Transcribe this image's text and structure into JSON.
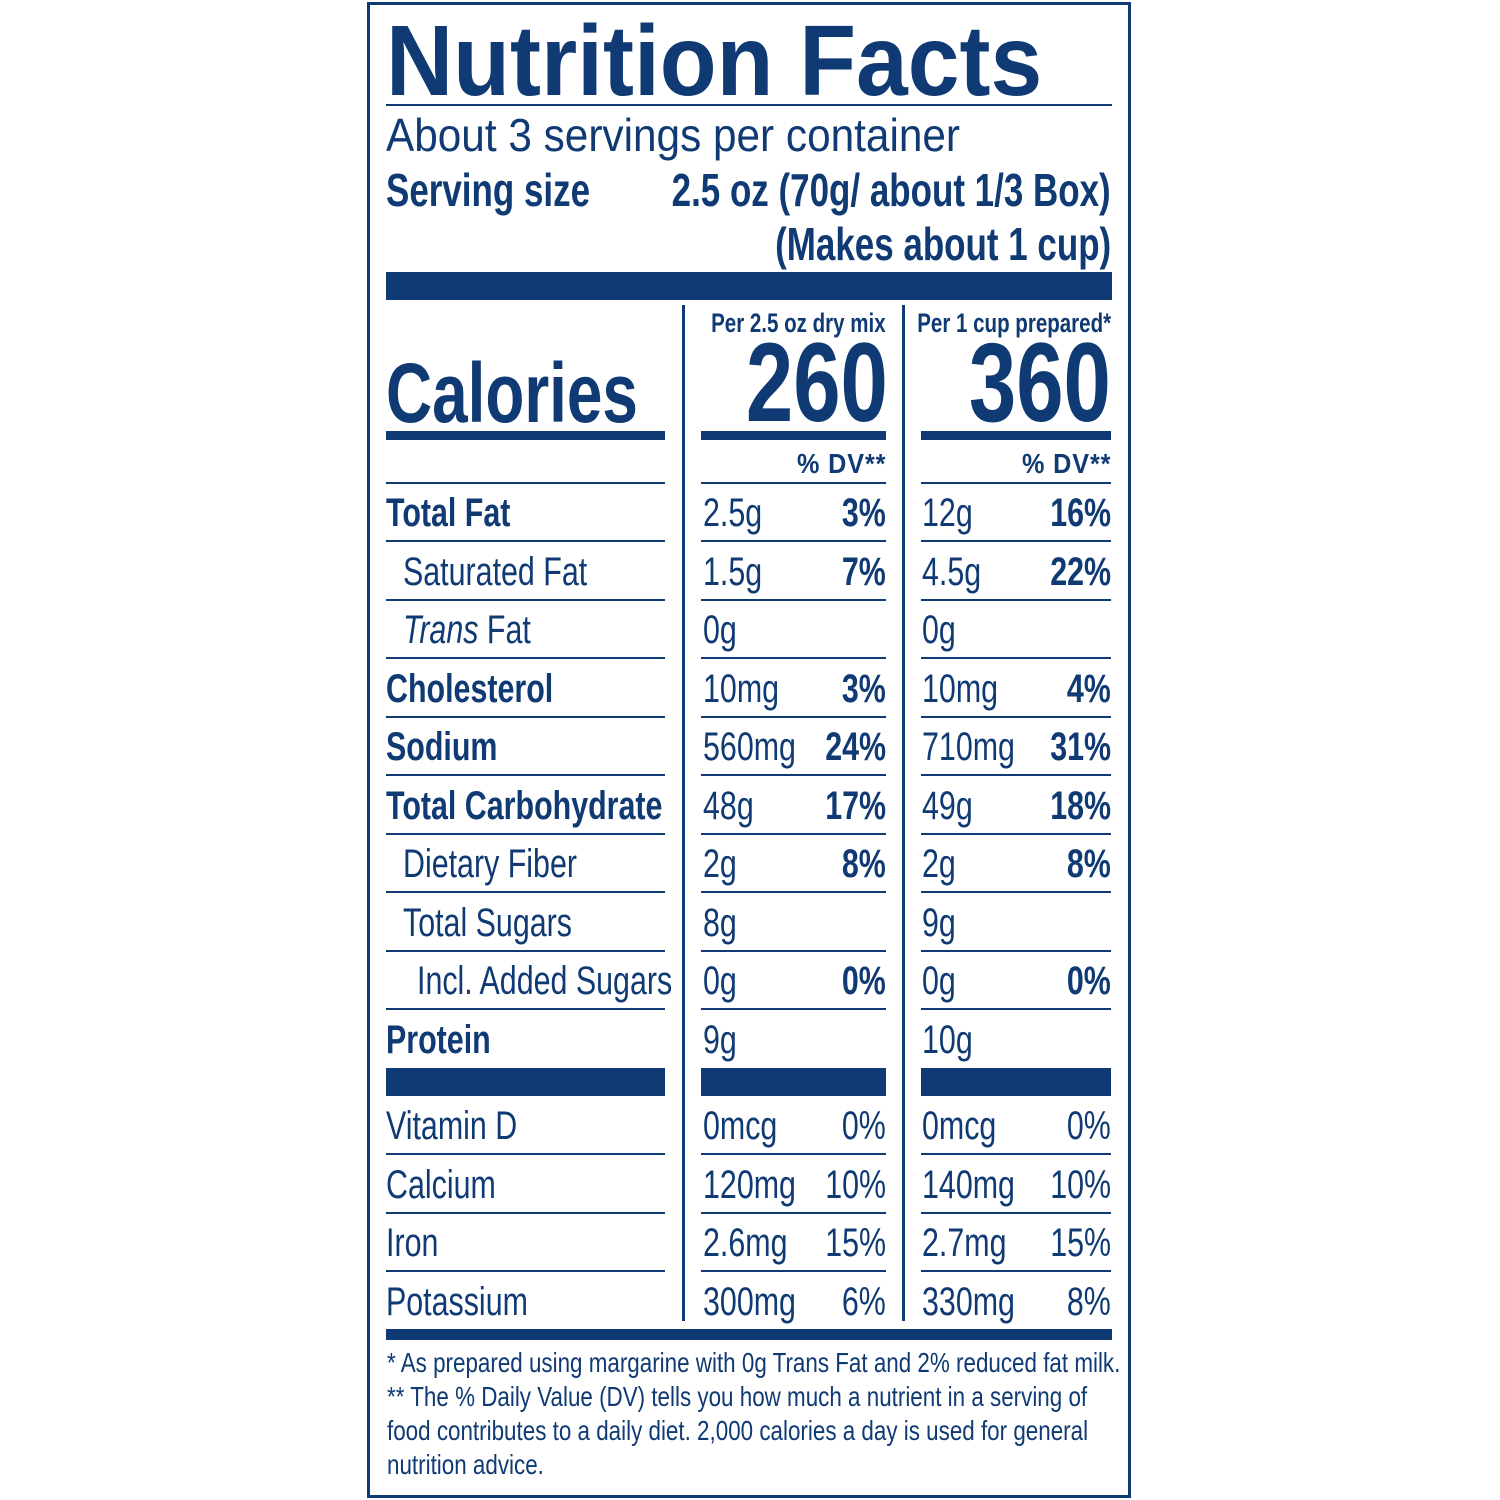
{
  "title": "Nutrition Facts",
  "servings_per_container": "About 3 servings per container",
  "serving_size_label": "Serving size",
  "serving_size_value": "2.5 oz (70g/ about 1/3 Box)",
  "serving_size_note": "(Makes about 1 cup)",
  "calories_label": "Calories",
  "columns": [
    {
      "header": "Per 2.5 oz dry mix",
      "calories": "260",
      "dv_header": "% DV**"
    },
    {
      "header": "Per 1 cup prepared*",
      "calories": "360",
      "dv_header": "% DV**"
    }
  ],
  "nutrients": [
    {
      "label": "Total Fat",
      "bold": true,
      "indent": 0,
      "dry": {
        "amount": "2.5g",
        "dv": "3%"
      },
      "prepared": {
        "amount": "12g",
        "dv": "16%"
      }
    },
    {
      "label": "Saturated Fat",
      "bold": false,
      "indent": 1,
      "dry": {
        "amount": "1.5g",
        "dv": "7%"
      },
      "prepared": {
        "amount": "4.5g",
        "dv": "22%"
      }
    },
    {
      "label_italic": "Trans",
      "label": " Fat",
      "bold": false,
      "indent": 1,
      "dry": {
        "amount": "0g",
        "dv": ""
      },
      "prepared": {
        "amount": "0g",
        "dv": ""
      }
    },
    {
      "label": "Cholesterol",
      "bold": true,
      "indent": 0,
      "dry": {
        "amount": "10mg",
        "dv": "3%"
      },
      "prepared": {
        "amount": "10mg",
        "dv": "4%"
      }
    },
    {
      "label": "Sodium",
      "bold": true,
      "indent": 0,
      "dry": {
        "amount": "560mg",
        "dv": "24%"
      },
      "prepared": {
        "amount": "710mg",
        "dv": "31%"
      }
    },
    {
      "label": "Total Carbohydrate",
      "bold": true,
      "indent": 0,
      "dry": {
        "amount": "48g",
        "dv": "17%"
      },
      "prepared": {
        "amount": "49g",
        "dv": "18%"
      }
    },
    {
      "label": "Dietary Fiber",
      "bold": false,
      "indent": 1,
      "dry": {
        "amount": "2g",
        "dv": "8%"
      },
      "prepared": {
        "amount": "2g",
        "dv": "8%"
      }
    },
    {
      "label": "Total Sugars",
      "bold": false,
      "indent": 1,
      "dry": {
        "amount": "8g",
        "dv": ""
      },
      "prepared": {
        "amount": "9g",
        "dv": ""
      }
    },
    {
      "label": "Incl. Added Sugars",
      "bold": false,
      "indent": 2,
      "dry": {
        "amount": "0g",
        "dv": "0%"
      },
      "prepared": {
        "amount": "0g",
        "dv": "0%"
      }
    },
    {
      "label": "Protein",
      "bold": true,
      "indent": 0,
      "dry": {
        "amount": "9g",
        "dv": ""
      },
      "prepared": {
        "amount": "10g",
        "dv": ""
      }
    }
  ],
  "vitamins": [
    {
      "label": "Vitamin D",
      "dry": {
        "amount": "0mcg",
        "dv": "0%"
      },
      "prepared": {
        "amount": "0mcg",
        "dv": "0%"
      }
    },
    {
      "label": "Calcium",
      "dry": {
        "amount": "120mg",
        "dv": "10%"
      },
      "prepared": {
        "amount": "140mg",
        "dv": "10%"
      }
    },
    {
      "label": "Iron",
      "dry": {
        "amount": "2.6mg",
        "dv": "15%"
      },
      "prepared": {
        "amount": "2.7mg",
        "dv": "15%"
      }
    },
    {
      "label": "Potassium",
      "dry": {
        "amount": "300mg",
        "dv": "6%"
      },
      "prepared": {
        "amount": "330mg",
        "dv": "8%"
      }
    }
  ],
  "footnotes": [
    "* As prepared using margarine with 0g Trans Fat and 2% reduced fat milk.",
    "** The % Daily Value (DV) tells you how much a nutrient in a serving of",
    "food contributes to a daily diet. 2,000 calories a day is used for general",
    "nutrition advice."
  ],
  "colors": {
    "ink": "#0f3a73",
    "background": "#ffffff"
  }
}
